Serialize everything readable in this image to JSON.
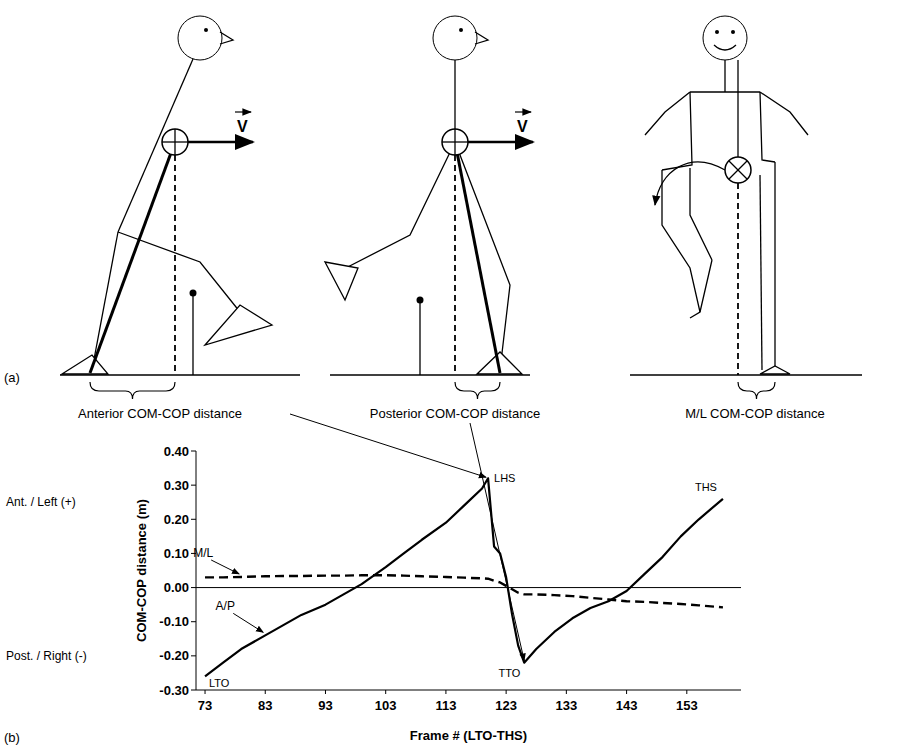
{
  "diagram": {
    "panel_label": "(a)",
    "velocity_label": "V",
    "distance_labels": [
      "Anterior COM-COP distance",
      "Posterior COM-COP distance",
      "M/L COM-COP distance"
    ]
  },
  "chart_data": {
    "type": "line",
    "panel_label": "(b)",
    "x_label": "Frame # (LTO-THS)",
    "y_label": "COM-COP distance (m)",
    "direction_labels": [
      "Ant. / Left (+)",
      "Post. / Right (-)"
    ],
    "x": [
      73,
      76,
      79,
      83,
      86,
      89,
      93,
      96,
      99,
      103,
      106,
      109,
      113,
      116,
      119,
      120,
      121,
      122,
      123,
      124,
      125,
      126,
      128,
      131,
      134,
      137,
      140,
      143,
      146,
      149,
      152,
      155,
      159
    ],
    "series": [
      {
        "name": "A/P",
        "color": "#000000",
        "line_style": "solid",
        "values": [
          -0.26,
          -0.22,
          -0.18,
          -0.14,
          -0.11,
          -0.08,
          -0.05,
          -0.02,
          0.01,
          0.06,
          0.1,
          0.14,
          0.19,
          0.24,
          0.29,
          0.32,
          0.12,
          0.1,
          0.03,
          -0.08,
          -0.17,
          -0.22,
          -0.18,
          -0.13,
          -0.09,
          -0.06,
          -0.04,
          -0.01,
          0.04,
          0.09,
          0.15,
          0.2,
          0.26
        ]
      },
      {
        "name": "M/L",
        "color": "#000000",
        "line_style": "dashed",
        "values": [
          0.03,
          0.03,
          0.031,
          0.033,
          0.034,
          0.034,
          0.035,
          0.035,
          0.036,
          0.036,
          0.035,
          0.033,
          0.031,
          0.029,
          0.027,
          0.026,
          0.02,
          0.015,
          0.005,
          -0.005,
          -0.015,
          -0.02,
          -0.02,
          -0.022,
          -0.025,
          -0.03,
          -0.035,
          -0.04,
          -0.042,
          -0.045,
          -0.048,
          -0.052,
          -0.058
        ]
      }
    ],
    "xlim": [
      71.5,
      162
    ],
    "xticks": [
      73,
      83,
      93,
      103,
      113,
      123,
      133,
      143,
      153
    ],
    "ylim": [
      -0.3,
      0.4
    ],
    "yticks": [
      {
        "value": 0.4,
        "label": "0.40"
      },
      {
        "value": 0.3,
        "label": "0.30"
      },
      {
        "value": 0.2,
        "label": "0.20"
      },
      {
        "value": 0.1,
        "label": "0.10"
      },
      {
        "value": 0,
        "label": "0.00"
      },
      {
        "value": -0.1,
        "label": "-0.10"
      },
      {
        "value": -0.2,
        "label": "-0.20"
      },
      {
        "value": -0.3,
        "label": "-0.30"
      }
    ],
    "annotations": [
      {
        "text": "LTO",
        "x": 73,
        "y": -0.26
      },
      {
        "text": "LHS",
        "x": 120,
        "y": 0.32
      },
      {
        "text": "TTO",
        "x": 126,
        "y": -0.22
      },
      {
        "text": "THS",
        "x": 159,
        "y": 0.26
      }
    ],
    "grid": false
  }
}
